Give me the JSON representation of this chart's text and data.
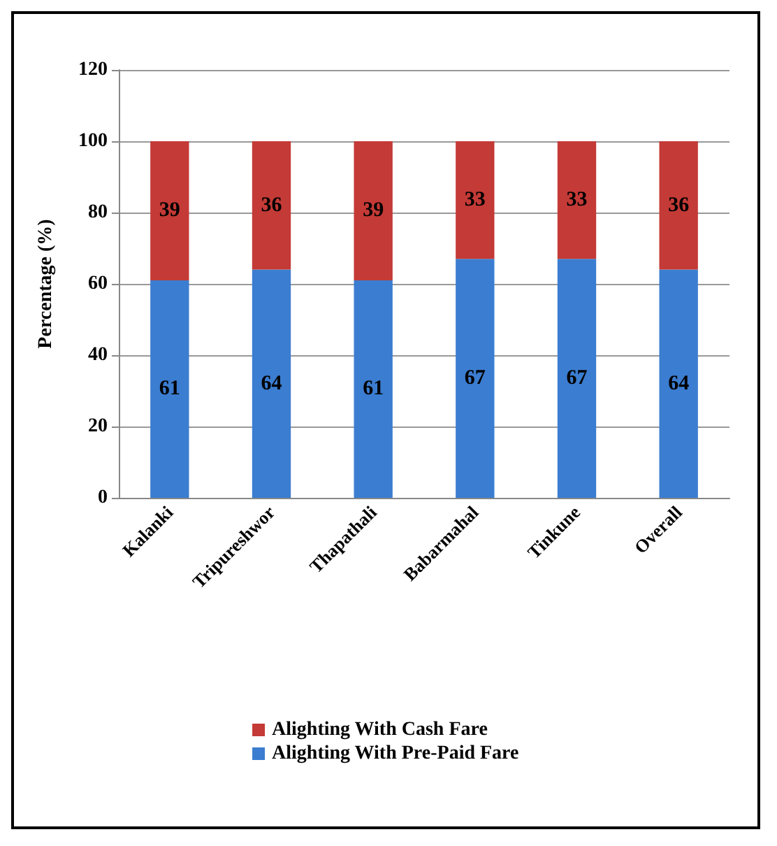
{
  "chart_data": {
    "type": "bar",
    "stacked": true,
    "ylabel": "Percentage (%)",
    "categories": [
      "Kalanki",
      "Tripureshwor",
      "Thapathali",
      "Babarmahal",
      "Tinkune",
      "Overall"
    ],
    "series": [
      {
        "name": "Alighting With Pre-Paid Fare",
        "color": "#3b7dd0",
        "values": [
          61,
          64,
          61,
          67,
          67,
          64
        ]
      },
      {
        "name": "Alighting With Cash Fare",
        "color": "#c43a36",
        "values": [
          39,
          36,
          39,
          33,
          33,
          36
        ]
      }
    ],
    "ylim": [
      0,
      120
    ],
    "yticks": [
      0,
      20,
      40,
      60,
      80,
      100,
      120
    ],
    "grid": "y",
    "legend": "bottom",
    "data_labels": true
  }
}
